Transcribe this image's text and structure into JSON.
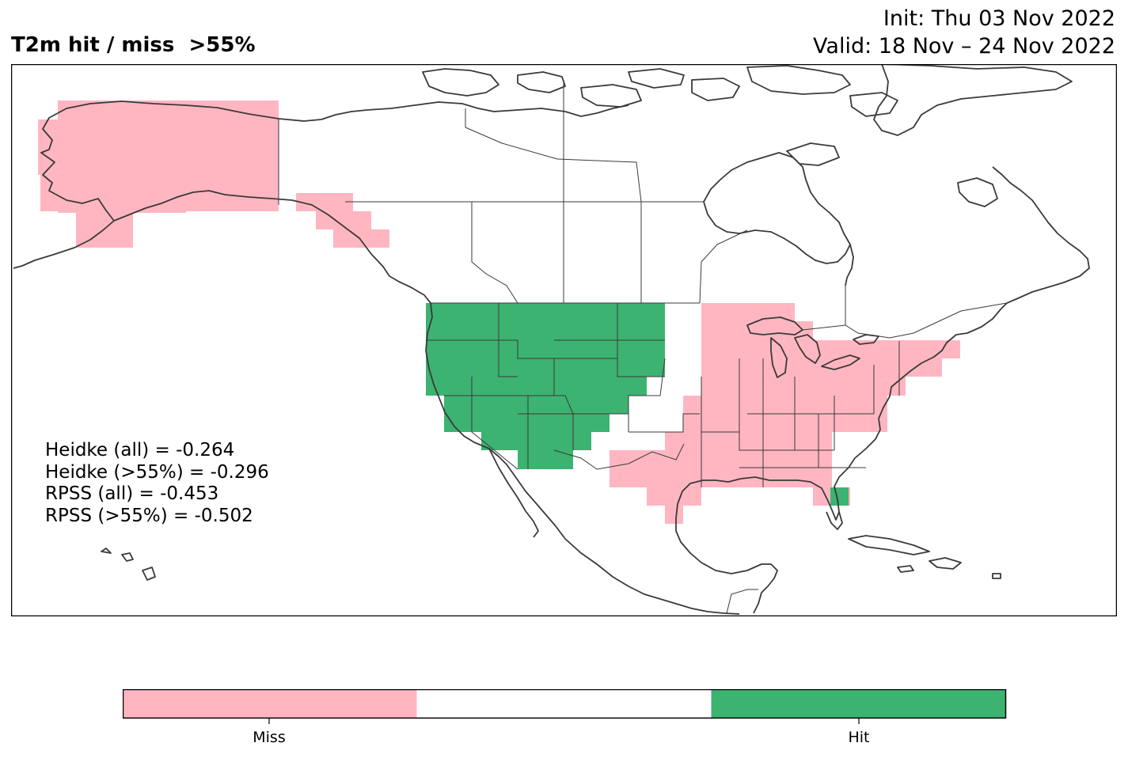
{
  "title": "T2m hit / miss  >55%",
  "init_text": "Init: Thu 03 Nov 2022",
  "valid_text": "Valid: 18 Nov – 24 Nov 2022",
  "stats": {
    "heidke_all": "Heidke (all) = -0.264",
    "heidke_55": "Heidke (>55%) = -0.296",
    "rpss_all": "RPSS (all) = -0.453",
    "rpss_55": "RPSS (>55%) = -0.502"
  },
  "legend": {
    "miss_label": "Miss",
    "hit_label": "Hit",
    "miss_color": "#ffb6c1",
    "neutral_color": "#ffffff",
    "hit_color": "#3cb371"
  },
  "colors": {
    "miss": "#ffb6c1",
    "hit": "#3cb371",
    "coast": "#3a3a3a",
    "border": "#3a3a3a"
  }
}
